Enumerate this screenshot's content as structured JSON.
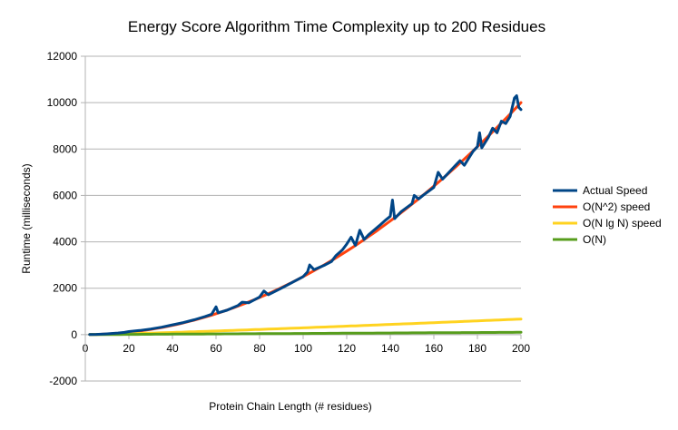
{
  "chart_data": {
    "type": "line",
    "title": "Energy Score Algorithm Time Complexity up to 200 Residues",
    "xlabel": "Protein Chain Length (# residues)",
    "ylabel": "Runtime (milliseconds)",
    "xlim": [
      0,
      200
    ],
    "ylim": [
      -2000,
      12000
    ],
    "xticks": [
      0,
      20,
      40,
      60,
      80,
      100,
      120,
      140,
      160,
      180,
      200
    ],
    "yticks": [
      -2000,
      0,
      2000,
      4000,
      6000,
      8000,
      10000,
      12000
    ],
    "grid": "horizontal",
    "legend_position": "right",
    "series": [
      {
        "name": "Actual Speed",
        "color": "#004586",
        "points": [
          [
            2,
            5
          ],
          [
            5,
            10
          ],
          [
            8,
            20
          ],
          [
            10,
            35
          ],
          [
            12,
            50
          ],
          [
            15,
            70
          ],
          [
            18,
            95
          ],
          [
            20,
            130
          ],
          [
            25,
            180
          ],
          [
            30,
            240
          ],
          [
            35,
            320
          ],
          [
            40,
            420
          ],
          [
            45,
            520
          ],
          [
            50,
            640
          ],
          [
            55,
            780
          ],
          [
            58,
            880
          ],
          [
            60,
            1200
          ],
          [
            61,
            940
          ],
          [
            65,
            1050
          ],
          [
            70,
            1250
          ],
          [
            72,
            1400
          ],
          [
            75,
            1370
          ],
          [
            80,
            1620
          ],
          [
            82,
            1880
          ],
          [
            84,
            1720
          ],
          [
            90,
            2000
          ],
          [
            95,
            2250
          ],
          [
            100,
            2500
          ],
          [
            102,
            2700
          ],
          [
            103,
            3000
          ],
          [
            105,
            2800
          ],
          [
            110,
            3000
          ],
          [
            113,
            3150
          ],
          [
            115,
            3400
          ],
          [
            118,
            3650
          ],
          [
            120,
            3900
          ],
          [
            122,
            4200
          ],
          [
            124,
            3850
          ],
          [
            126,
            4500
          ],
          [
            128,
            4100
          ],
          [
            130,
            4300
          ],
          [
            135,
            4700
          ],
          [
            138,
            4950
          ],
          [
            140,
            5100
          ],
          [
            141,
            5800
          ],
          [
            142,
            5000
          ],
          [
            145,
            5300
          ],
          [
            150,
            5650
          ],
          [
            151,
            6000
          ],
          [
            153,
            5850
          ],
          [
            155,
            6000
          ],
          [
            160,
            6350
          ],
          [
            162,
            7000
          ],
          [
            164,
            6700
          ],
          [
            166,
            6900
          ],
          [
            170,
            7300
          ],
          [
            172,
            7500
          ],
          [
            174,
            7300
          ],
          [
            176,
            7600
          ],
          [
            178,
            7900
          ],
          [
            180,
            8100
          ],
          [
            181,
            8700
          ],
          [
            182,
            8050
          ],
          [
            185,
            8500
          ],
          [
            187,
            8900
          ],
          [
            189,
            8700
          ],
          [
            191,
            9200
          ],
          [
            193,
            9100
          ],
          [
            195,
            9400
          ],
          [
            197,
            10200
          ],
          [
            198,
            10300
          ],
          [
            199,
            9800
          ],
          [
            200,
            9700
          ]
        ]
      },
      {
        "name": "O(N^2) speed",
        "color": "#ff420e",
        "formula": "0.25*N^2"
      },
      {
        "name": "O(N lg N) speed",
        "color": "#ffd320",
        "formula": "0.44*N*log2(N)"
      },
      {
        "name": "O(N)",
        "color": "#579d1c",
        "formula": "0.5*N"
      }
    ]
  }
}
